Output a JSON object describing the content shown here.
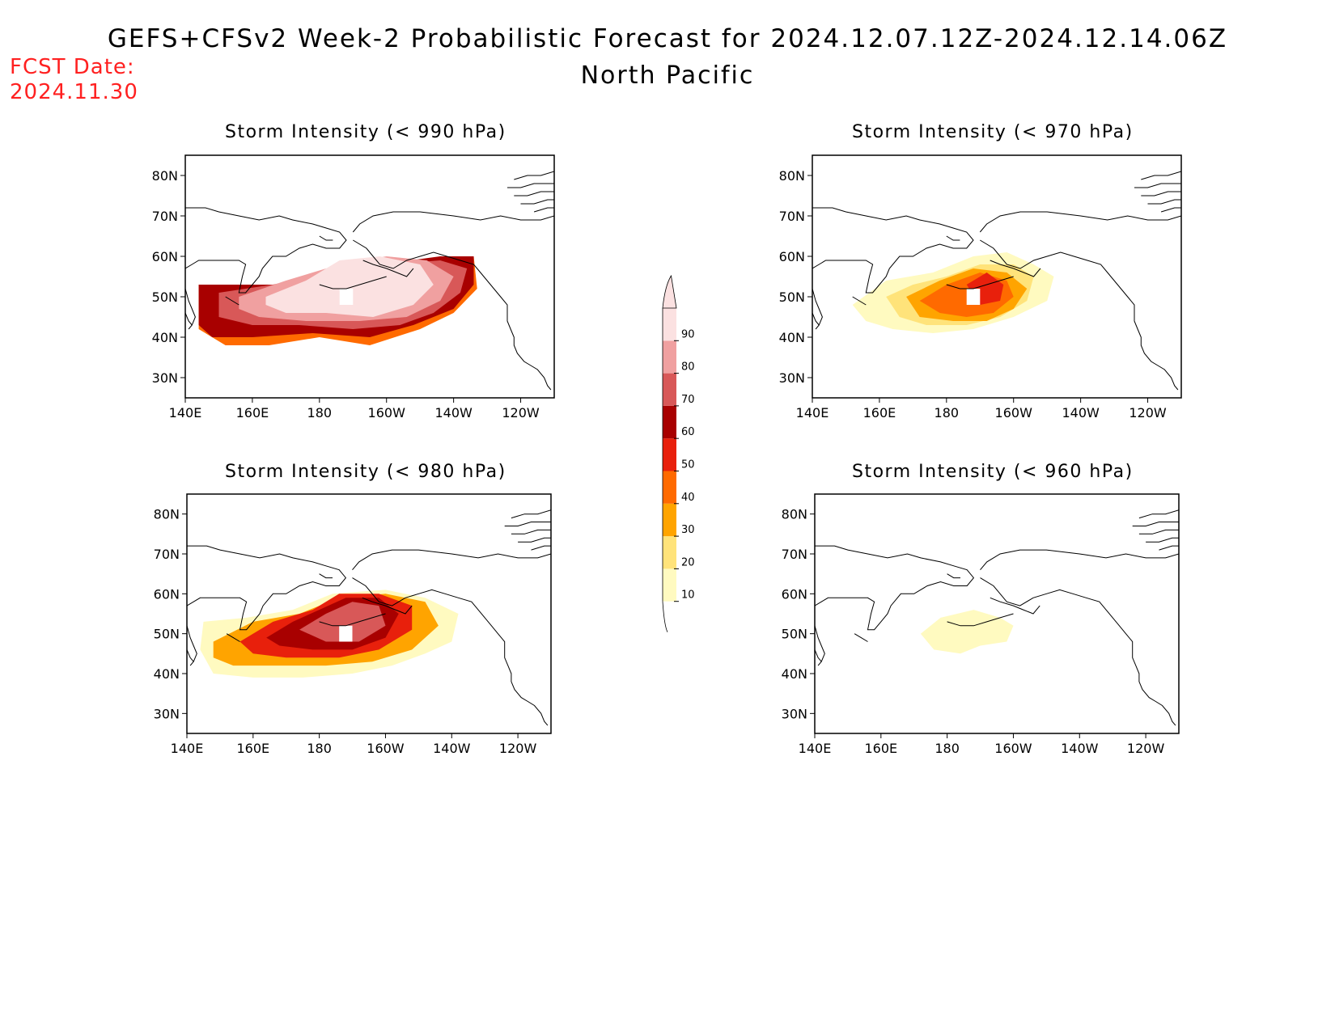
{
  "header": {
    "title": "GEFS+CFSv2 Week-2 Probabilistic Forecast for 2024.12.07.12Z-2024.12.14.06Z",
    "region": "North Pacific",
    "fcst_label": "FCST Date:",
    "fcst_date": "2024.11.30"
  },
  "axes": {
    "lat_labels": [
      "80N",
      "70N",
      "60N",
      "50N",
      "40N",
      "30N"
    ],
    "lat_values": [
      80,
      70,
      60,
      50,
      40,
      30
    ],
    "lon_labels": [
      "140E",
      "160E",
      "180",
      "160W",
      "140W",
      "120W"
    ],
    "lon_values": [
      140,
      160,
      180,
      200,
      220,
      240
    ],
    "lon_range": [
      140,
      250
    ],
    "lat_range": [
      25,
      85
    ]
  },
  "colorbar": {
    "levels": [
      "10",
      "20",
      "30",
      "40",
      "50",
      "60",
      "70",
      "80",
      "90"
    ],
    "colors": [
      "#fffac0",
      "#ffe37a",
      "#ffa400",
      "#ff6a00",
      "#e8200c",
      "#a80000",
      "#d85858",
      "#f0a0a0",
      "#fbe1e1"
    ]
  },
  "panels": [
    {
      "id": "p990",
      "title": "Storm Intensity (< 990 hPa)",
      "blobs": [
        {
          "level": 3,
          "pts": [
            [
              144,
              53
            ],
            [
              162,
              53
            ],
            [
              180,
              50
            ],
            [
              200,
              57
            ],
            [
              218,
              60
            ],
            [
              226,
              60
            ],
            [
              227,
              52
            ],
            [
              220,
              46
            ],
            [
              210,
              42
            ],
            [
              195,
              38
            ],
            [
              180,
              40
            ],
            [
              165,
              38
            ],
            [
              152,
              38
            ],
            [
              144,
              42
            ]
          ]
        },
        {
          "level": 5,
          "pts": [
            [
              144,
              53
            ],
            [
              164,
              53
            ],
            [
              182,
              53
            ],
            [
              198,
              58
            ],
            [
              216,
              60
            ],
            [
              226,
              60
            ],
            [
              226,
              53
            ],
            [
              220,
              47
            ],
            [
              208,
              43
            ],
            [
              195,
              40
            ],
            [
              178,
              41
            ],
            [
              160,
              40
            ],
            [
              148,
              40
            ],
            [
              144,
              43
            ]
          ]
        },
        {
          "level": 6,
          "pts": [
            [
              150,
              51
            ],
            [
              166,
              53
            ],
            [
              184,
              56
            ],
            [
              200,
              58
            ],
            [
              216,
              59
            ],
            [
              224,
              57
            ],
            [
              222,
              51
            ],
            [
              214,
              46
            ],
            [
              204,
              43
            ],
            [
              190,
              42
            ],
            [
              174,
              43
            ],
            [
              160,
              43
            ],
            [
              150,
              45
            ]
          ]
        },
        {
          "level": 7,
          "pts": [
            [
              156,
              50
            ],
            [
              170,
              54
            ],
            [
              186,
              58
            ],
            [
              200,
              60
            ],
            [
              212,
              59
            ],
            [
              220,
              55
            ],
            [
              216,
              49
            ],
            [
              206,
              45
            ],
            [
              192,
              44
            ],
            [
              176,
              44
            ],
            [
              162,
              45
            ],
            [
              156,
              47
            ]
          ]
        },
        {
          "level": 8,
          "pts": [
            [
              164,
              50
            ],
            [
              176,
              54
            ],
            [
              186,
              59
            ],
            [
              198,
              60
            ],
            [
              210,
              58
            ],
            [
              214,
              53
            ],
            [
              208,
              48
            ],
            [
              196,
              45
            ],
            [
              182,
              46
            ],
            [
              170,
              46
            ],
            [
              164,
              48
            ]
          ]
        }
      ],
      "holes": [
        [
          [
            186,
            52
          ],
          [
            190,
            52
          ],
          [
            190,
            48
          ],
          [
            186,
            48
          ]
        ]
      ]
    },
    {
      "id": "p970",
      "title": "Storm Intensity (< 970 hPa)",
      "blobs": [
        {
          "level": 0,
          "pts": [
            [
              152,
              48
            ],
            [
              162,
              54
            ],
            [
              176,
              56
            ],
            [
              188,
              60
            ],
            [
              198,
              61
            ],
            [
              206,
              58
            ],
            [
              212,
              55
            ],
            [
              210,
              49
            ],
            [
              200,
              45
            ],
            [
              188,
              42
            ],
            [
              176,
              41
            ],
            [
              164,
              42
            ],
            [
              156,
              44
            ]
          ]
        },
        {
          "level": 1,
          "pts": [
            [
              162,
              50
            ],
            [
              170,
              53
            ],
            [
              180,
              55
            ],
            [
              190,
              58
            ],
            [
              200,
              58
            ],
            [
              206,
              55
            ],
            [
              204,
              49
            ],
            [
              196,
              45
            ],
            [
              186,
              43
            ],
            [
              174,
              43
            ],
            [
              166,
              45
            ]
          ]
        },
        {
          "level": 2,
          "pts": [
            [
              168,
              50
            ],
            [
              178,
              54
            ],
            [
              188,
              57
            ],
            [
              198,
              56
            ],
            [
              204,
              52
            ],
            [
              200,
              47
            ],
            [
              192,
              44
            ],
            [
              182,
              44
            ],
            [
              172,
              45
            ]
          ]
        },
        {
          "level": 3,
          "pts": [
            [
              172,
              49
            ],
            [
              180,
              53
            ],
            [
              190,
              56
            ],
            [
              198,
              54
            ],
            [
              200,
              50
            ],
            [
              194,
              46
            ],
            [
              186,
              45
            ],
            [
              178,
              46
            ]
          ]
        },
        {
          "level": 4,
          "pts": [
            [
              186,
              53
            ],
            [
              192,
              56
            ],
            [
              197,
              53
            ],
            [
              196,
              49
            ],
            [
              190,
              48
            ]
          ]
        }
      ],
      "holes": [
        [
          [
            186,
            52
          ],
          [
            190,
            52
          ],
          [
            190,
            48
          ],
          [
            186,
            48
          ]
        ]
      ]
    },
    {
      "id": "p980",
      "title": "Storm Intensity (< 980 hPa)",
      "blobs": [
        {
          "level": 0,
          "pts": [
            [
              145,
              53
            ],
            [
              158,
              54
            ],
            [
              172,
              56
            ],
            [
              184,
              60
            ],
            [
              200,
              61
            ],
            [
              212,
              59
            ],
            [
              222,
              55
            ],
            [
              220,
              48
            ],
            [
              212,
              45
            ],
            [
              202,
              42
            ],
            [
              190,
              40
            ],
            [
              175,
              39
            ],
            [
              160,
              39
            ],
            [
              148,
              40
            ],
            [
              144,
              46
            ]
          ]
        },
        {
          "level": 2,
          "pts": [
            [
              148,
              48
            ],
            [
              160,
              53
            ],
            [
              174,
              55
            ],
            [
              186,
              59
            ],
            [
              200,
              60
            ],
            [
              212,
              58
            ],
            [
              216,
              52
            ],
            [
              208,
              46
            ],
            [
              196,
              43
            ],
            [
              182,
              42
            ],
            [
              166,
              42
            ],
            [
              154,
              42
            ],
            [
              148,
              44
            ]
          ]
        },
        {
          "level": 4,
          "pts": [
            [
              156,
              48
            ],
            [
              166,
              53
            ],
            [
              178,
              56
            ],
            [
              186,
              60
            ],
            [
              198,
              60
            ],
            [
              208,
              57
            ],
            [
              208,
              51
            ],
            [
              198,
              46
            ],
            [
              186,
              44
            ],
            [
              170,
              44
            ],
            [
              160,
              45
            ]
          ]
        },
        {
          "level": 5,
          "pts": [
            [
              164,
              49
            ],
            [
              172,
              53
            ],
            [
              180,
              56
            ],
            [
              188,
              59
            ],
            [
              198,
              59
            ],
            [
              204,
              55
            ],
            [
              200,
              49
            ],
            [
              190,
              46
            ],
            [
              178,
              46
            ],
            [
              168,
              47
            ]
          ]
        },
        {
          "level": 6,
          "pts": [
            [
              174,
              51
            ],
            [
              182,
              55
            ],
            [
              190,
              58
            ],
            [
              198,
              57
            ],
            [
              200,
              52
            ],
            [
              192,
              48
            ],
            [
              182,
              48
            ]
          ]
        }
      ],
      "holes": [
        [
          [
            186,
            52
          ],
          [
            190,
            52
          ],
          [
            190,
            48
          ],
          [
            186,
            48
          ]
        ]
      ]
    },
    {
      "id": "p960",
      "title": "Storm Intensity (< 960 hPa)",
      "blobs": [
        {
          "level": 0,
          "pts": [
            [
              172,
              50
            ],
            [
              178,
              54
            ],
            [
              188,
              56
            ],
            [
              196,
              54
            ],
            [
              200,
              52
            ],
            [
              198,
              48
            ],
            [
              190,
              47
            ],
            [
              184,
              45
            ],
            [
              176,
              46
            ]
          ]
        }
      ],
      "holes": []
    }
  ],
  "colormap_note": ""
}
